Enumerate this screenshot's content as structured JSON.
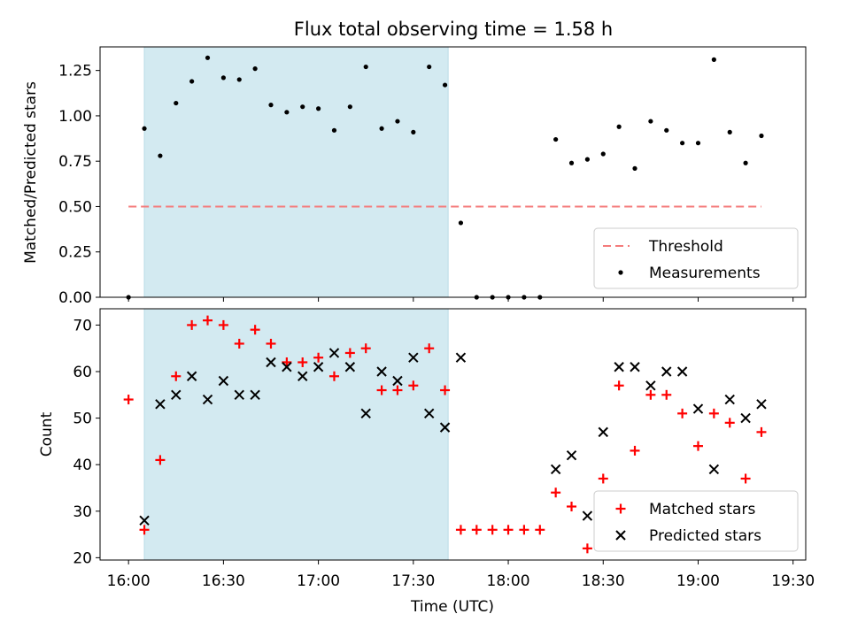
{
  "chart_data": [
    {
      "type": "scatter",
      "title": "Flux total observing time = 1.58 h",
      "xlabel": "",
      "ylabel": "Matched/Predicted stars",
      "xlim": [
        "15:51",
        "19:34"
      ],
      "ylim": [
        0,
        1.38
      ],
      "yticks": [
        0,
        0.25,
        0.5,
        0.75,
        1.0,
        1.25
      ],
      "ytick_labels": [
        "0.00",
        "0.25",
        "0.50",
        "0.75",
        "1.00",
        "1.25"
      ],
      "grid": false,
      "legend_position": "lower-right",
      "shaded_region": {
        "start": "16:05",
        "end": "17:41",
        "color": "#d3eaf1"
      },
      "threshold": {
        "name": "Threshold",
        "value": 0.5,
        "x_start": "16:00",
        "x_end": "19:20",
        "color": "#f47b7b",
        "style": "dashed"
      },
      "series": [
        {
          "name": "Measurements",
          "marker": "dot",
          "color": "#000000",
          "points": [
            [
              "16:00",
              0.0
            ],
            [
              "16:05",
              0.93
            ],
            [
              "16:10",
              0.78
            ],
            [
              "16:15",
              1.07
            ],
            [
              "16:20",
              1.19
            ],
            [
              "16:25",
              1.32
            ],
            [
              "16:30",
              1.21
            ],
            [
              "16:35",
              1.2
            ],
            [
              "16:40",
              1.26
            ],
            [
              "16:45",
              1.06
            ],
            [
              "16:50",
              1.02
            ],
            [
              "16:55",
              1.05
            ],
            [
              "17:00",
              1.04
            ],
            [
              "17:05",
              0.92
            ],
            [
              "17:10",
              1.05
            ],
            [
              "17:15",
              1.27
            ],
            [
              "17:20",
              0.93
            ],
            [
              "17:25",
              0.97
            ],
            [
              "17:30",
              0.91
            ],
            [
              "17:35",
              1.27
            ],
            [
              "17:40",
              1.17
            ],
            [
              "17:45",
              0.41
            ],
            [
              "17:50",
              0.0
            ],
            [
              "17:55",
              0.0
            ],
            [
              "18:00",
              0.0
            ],
            [
              "18:05",
              0.0
            ],
            [
              "18:10",
              0.0
            ],
            [
              "18:15",
              0.87
            ],
            [
              "18:20",
              0.74
            ],
            [
              "18:25",
              0.76
            ],
            [
              "18:30",
              0.79
            ],
            [
              "18:35",
              0.94
            ],
            [
              "18:40",
              0.71
            ],
            [
              "18:45",
              0.97
            ],
            [
              "18:50",
              0.92
            ],
            [
              "18:55",
              0.85
            ],
            [
              "19:00",
              0.85
            ],
            [
              "19:05",
              1.31
            ],
            [
              "19:10",
              0.91
            ],
            [
              "19:15",
              0.74
            ],
            [
              "19:20",
              0.89
            ]
          ]
        }
      ]
    },
    {
      "type": "scatter",
      "title": "",
      "xlabel": "Time (UTC)",
      "ylabel": "Count",
      "xlim": [
        "15:51",
        "19:34"
      ],
      "ylim": [
        19.5,
        73.5
      ],
      "xticks": [
        "16:00",
        "16:30",
        "17:00",
        "17:30",
        "18:00",
        "18:30",
        "19:00",
        "19:30"
      ],
      "yticks": [
        20,
        30,
        40,
        50,
        60,
        70
      ],
      "grid": false,
      "legend_position": "lower-right",
      "shaded_region": {
        "start": "16:05",
        "end": "17:41",
        "color": "#d3eaf1"
      },
      "series": [
        {
          "name": "Matched stars",
          "marker": "plus",
          "color": "#ff0000",
          "points": [
            [
              "16:00",
              54
            ],
            [
              "16:05",
              26
            ],
            [
              "16:10",
              41
            ],
            [
              "16:15",
              59
            ],
            [
              "16:20",
              70
            ],
            [
              "16:25",
              71
            ],
            [
              "16:30",
              70
            ],
            [
              "16:35",
              66
            ],
            [
              "16:40",
              69
            ],
            [
              "16:45",
              66
            ],
            [
              "16:50",
              62
            ],
            [
              "16:55",
              62
            ],
            [
              "17:00",
              63
            ],
            [
              "17:05",
              59
            ],
            [
              "17:10",
              64
            ],
            [
              "17:15",
              65
            ],
            [
              "17:20",
              56
            ],
            [
              "17:25",
              56
            ],
            [
              "17:30",
              57
            ],
            [
              "17:35",
              65
            ],
            [
              "17:40",
              56
            ],
            [
              "17:45",
              26
            ],
            [
              "17:50",
              26
            ],
            [
              "17:55",
              26
            ],
            [
              "18:00",
              26
            ],
            [
              "18:05",
              26
            ],
            [
              "18:10",
              26
            ],
            [
              "18:15",
              34
            ],
            [
              "18:20",
              31
            ],
            [
              "18:25",
              22
            ],
            [
              "18:30",
              37
            ],
            [
              "18:35",
              57
            ],
            [
              "18:40",
              43
            ],
            [
              "18:45",
              55
            ],
            [
              "18:50",
              55
            ],
            [
              "18:55",
              51
            ],
            [
              "19:00",
              44
            ],
            [
              "19:05",
              51
            ],
            [
              "19:10",
              49
            ],
            [
              "19:15",
              37
            ],
            [
              "19:20",
              47
            ]
          ]
        },
        {
          "name": "Predicted stars",
          "marker": "x",
          "color": "#000000",
          "points": [
            [
              "16:05",
              28
            ],
            [
              "16:10",
              53
            ],
            [
              "16:15",
              55
            ],
            [
              "16:20",
              59
            ],
            [
              "16:25",
              54
            ],
            [
              "16:30",
              58
            ],
            [
              "16:35",
              55
            ],
            [
              "16:40",
              55
            ],
            [
              "16:45",
              62
            ],
            [
              "16:50",
              61
            ],
            [
              "16:55",
              59
            ],
            [
              "17:00",
              61
            ],
            [
              "17:05",
              64
            ],
            [
              "17:10",
              61
            ],
            [
              "17:15",
              51
            ],
            [
              "17:20",
              60
            ],
            [
              "17:25",
              58
            ],
            [
              "17:30",
              63
            ],
            [
              "17:35",
              51
            ],
            [
              "17:40",
              48
            ],
            [
              "17:45",
              63
            ],
            [
              "18:15",
              39
            ],
            [
              "18:20",
              42
            ],
            [
              "18:25",
              29
            ],
            [
              "18:30",
              47
            ],
            [
              "18:35",
              61
            ],
            [
              "18:40",
              61
            ],
            [
              "18:45",
              57
            ],
            [
              "18:50",
              60
            ],
            [
              "18:55",
              60
            ],
            [
              "19:00",
              52
            ],
            [
              "19:05",
              39
            ],
            [
              "19:10",
              54
            ],
            [
              "19:15",
              50
            ],
            [
              "19:20",
              53
            ]
          ]
        }
      ]
    }
  ]
}
